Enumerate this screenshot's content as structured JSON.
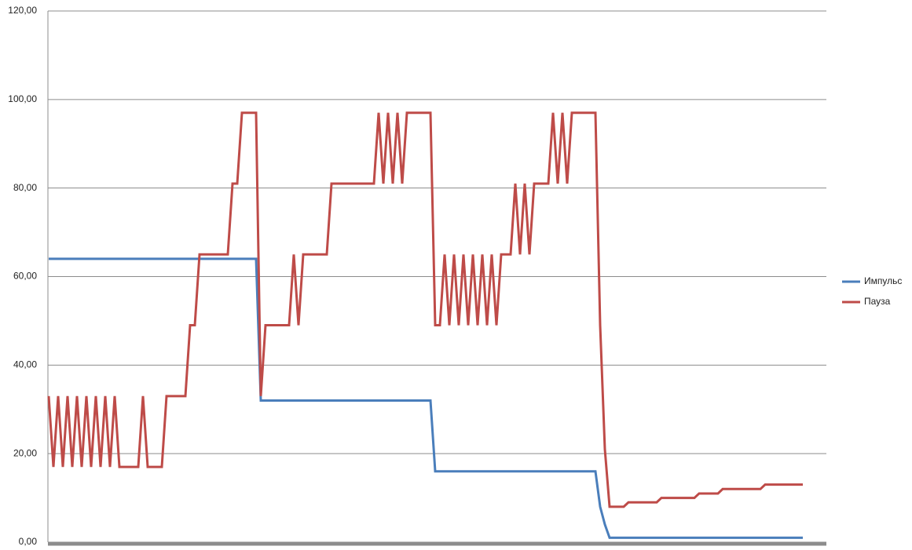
{
  "chart_data": {
    "type": "line",
    "ylim": [
      0,
      120
    ],
    "yticks": [
      {
        "value": 0,
        "label": "0,00"
      },
      {
        "value": 20,
        "label": "20,00"
      },
      {
        "value": 40,
        "label": "40,00"
      },
      {
        "value": 60,
        "label": "60,00"
      },
      {
        "value": 80,
        "label": "80,00"
      },
      {
        "value": 100,
        "label": "100,00"
      },
      {
        "value": 120,
        "label": "120,00"
      }
    ],
    "grid": true,
    "legend": "right",
    "series": [
      {
        "name": "Импульс",
        "color": "#4a7ebb",
        "values": [
          64,
          64,
          64,
          64,
          64,
          64,
          64,
          64,
          64,
          64,
          64,
          64,
          64,
          64,
          64,
          64,
          64,
          64,
          64,
          64,
          64,
          64,
          64,
          64,
          64,
          64,
          64,
          64,
          64,
          64,
          64,
          64,
          64,
          64,
          64,
          64,
          64,
          64,
          64,
          64,
          64,
          64,
          64,
          64,
          64,
          32,
          32,
          32,
          32,
          32,
          32,
          32,
          32,
          32,
          32,
          32,
          32,
          32,
          32,
          32,
          32,
          32,
          32,
          32,
          32,
          32,
          32,
          32,
          32,
          32,
          32,
          32,
          32,
          32,
          32,
          32,
          32,
          32,
          32,
          32,
          32,
          32,
          16,
          16,
          16,
          16,
          16,
          16,
          16,
          16,
          16,
          16,
          16,
          16,
          16,
          16,
          16,
          16,
          16,
          16,
          16,
          16,
          16,
          16,
          16,
          16,
          16,
          16,
          16,
          16,
          16,
          16,
          16,
          16,
          16,
          16,
          16,
          8,
          4,
          1,
          1,
          1,
          1,
          1,
          1,
          1,
          1,
          1,
          1,
          1,
          1,
          1,
          1,
          1,
          1,
          1,
          1,
          1,
          1,
          1,
          1,
          1,
          1,
          1,
          1,
          1,
          1,
          1,
          1,
          1,
          1,
          1,
          1,
          1,
          1,
          1,
          1,
          1,
          1,
          1,
          1
        ]
      },
      {
        "name": "Пауза",
        "color": "#be4b48",
        "values": [
          33,
          17,
          33,
          17,
          33,
          17,
          33,
          17,
          33,
          17,
          33,
          17,
          33,
          17,
          33,
          17,
          17,
          17,
          17,
          17,
          33,
          17,
          17,
          17,
          17,
          33,
          33,
          33,
          33,
          33,
          49,
          49,
          65,
          65,
          65,
          65,
          65,
          65,
          65,
          81,
          81,
          97,
          97,
          97,
          97,
          33,
          49,
          49,
          49,
          49,
          49,
          49,
          65,
          49,
          65,
          65,
          65,
          65,
          65,
          65,
          81,
          81,
          81,
          81,
          81,
          81,
          81,
          81,
          81,
          81,
          97,
          81,
          97,
          81,
          97,
          81,
          97,
          97,
          97,
          97,
          97,
          97,
          49,
          49,
          65,
          49,
          65,
          49,
          65,
          49,
          65,
          49,
          65,
          49,
          65,
          49,
          65,
          65,
          65,
          81,
          65,
          81,
          65,
          81,
          81,
          81,
          81,
          97,
          81,
          97,
          81,
          97,
          97,
          97,
          97,
          97,
          97,
          49,
          21,
          8,
          8,
          8,
          8,
          9,
          9,
          9,
          9,
          9,
          9,
          9,
          10,
          10,
          10,
          10,
          10,
          10,
          10,
          10,
          11,
          11,
          11,
          11,
          11,
          12,
          12,
          12,
          12,
          12,
          12,
          12,
          12,
          12,
          13,
          13,
          13,
          13,
          13,
          13,
          13,
          13,
          13
        ]
      }
    ]
  }
}
